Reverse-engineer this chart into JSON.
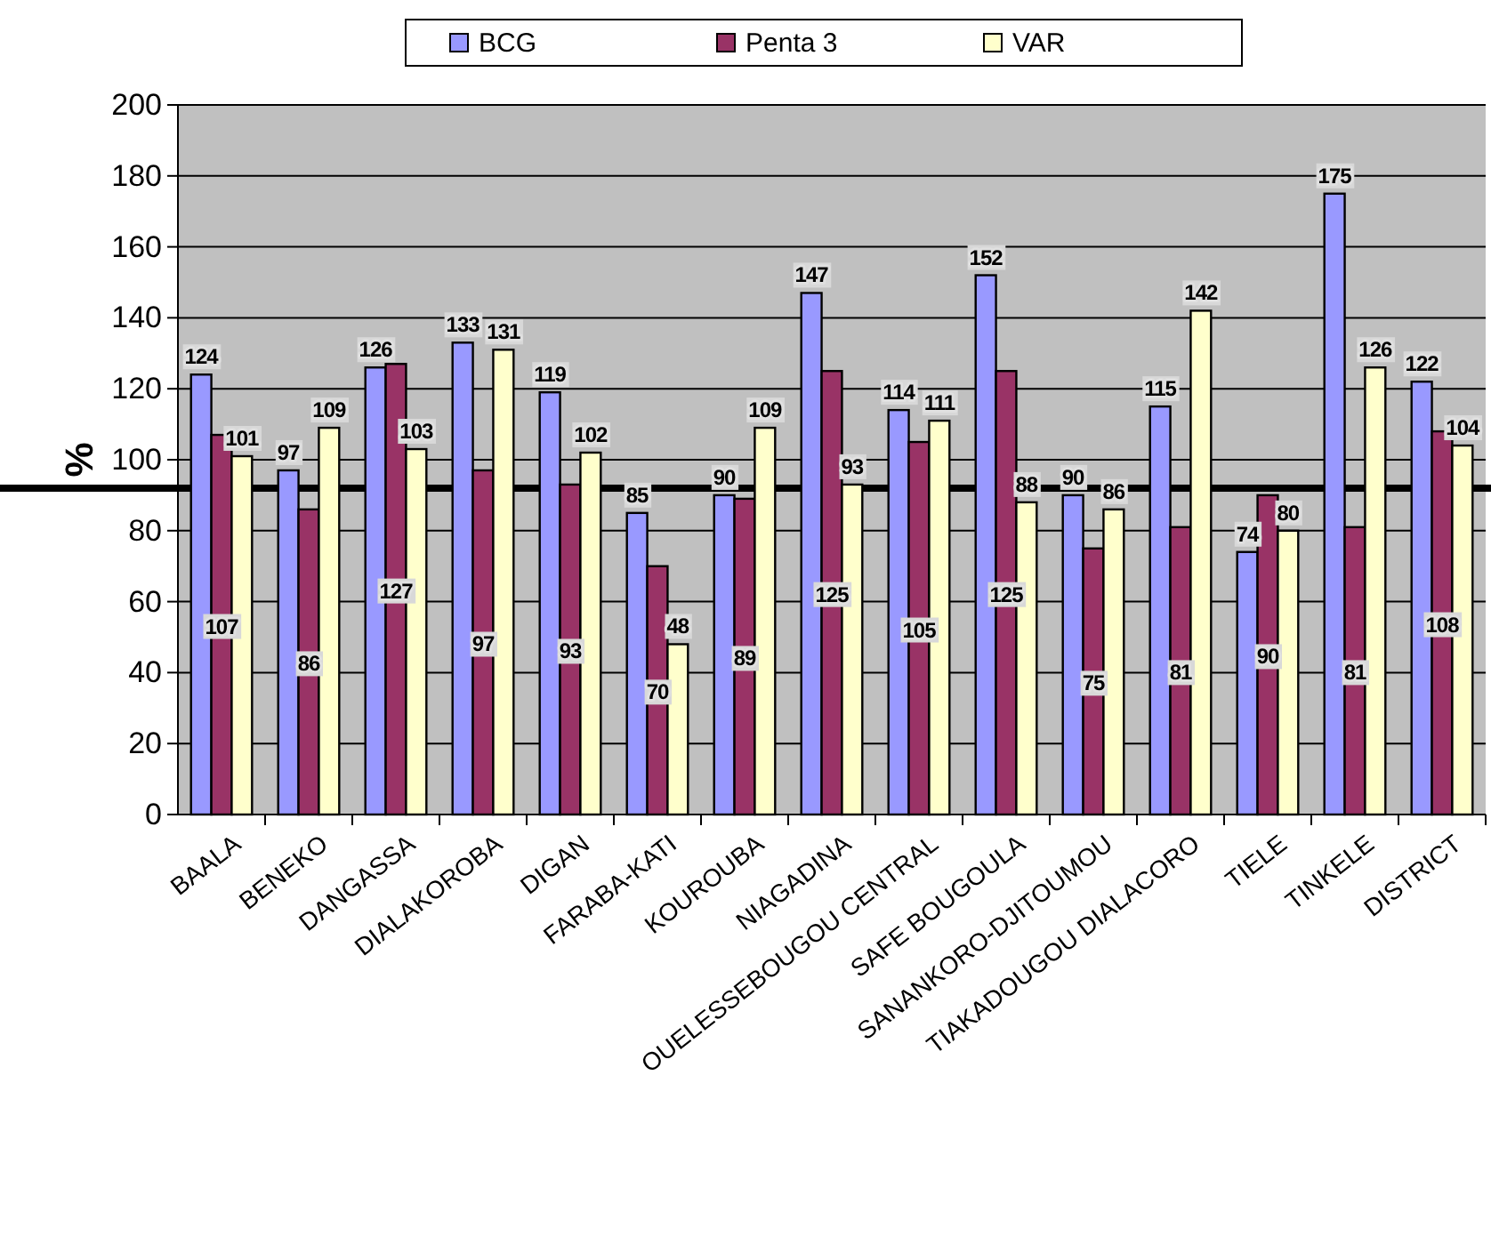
{
  "chart_data": {
    "type": "bar",
    "ylabel": "%",
    "categories": [
      "BAALA",
      "BENEKO",
      "DANGASSA",
      "DIALAKOROBA",
      "DIGAN",
      "FARABA-KATI",
      "KOUROUBA",
      "NIAGADINA",
      "OUELESSEBOUGOU CENTRAL",
      "SAFE BOUGOULA",
      "SANANKORO-DJITOUMOU",
      "TIAKADOUGOU DIALACORO",
      "TIELE",
      "TINKELE",
      "DISTRICT"
    ],
    "series": [
      {
        "name": "BCG",
        "color": "#9999ff",
        "values": [
          124,
          97,
          126,
          133,
          119,
          85,
          90,
          147,
          114,
          152,
          90,
          115,
          74,
          175,
          122
        ]
      },
      {
        "name": "Penta 3",
        "color": "#993366",
        "values": [
          107,
          86,
          127,
          97,
          93,
          70,
          89,
          125,
          105,
          125,
          75,
          81,
          90,
          81,
          108
        ]
      },
      {
        "name": "VAR",
        "color": "#ffffcc",
        "values": [
          101,
          109,
          103,
          131,
          102,
          48,
          109,
          93,
          111,
          88,
          86,
          142,
          80,
          126,
          104
        ]
      }
    ],
    "ylim": [
      0,
      200
    ],
    "yticks": [
      0,
      20,
      40,
      60,
      80,
      100,
      120,
      140,
      160,
      180,
      200
    ],
    "grid": "y",
    "legend": "top",
    "data_labels": true,
    "ref_lines": [
      {
        "axis": "y",
        "value": 92,
        "color": "#000000"
      }
    ]
  }
}
